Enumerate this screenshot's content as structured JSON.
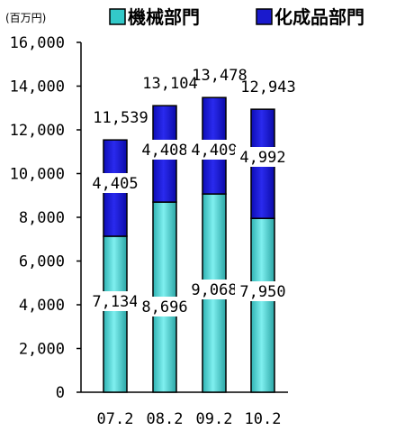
{
  "chart_data": {
    "type": "bar",
    "stacked": true,
    "unit_label": "(百万円)",
    "categories": [
      "07.2",
      "08.2",
      "09.2",
      "10.2"
    ],
    "series": [
      {
        "name": "機械部門",
        "color": "#33c9c9",
        "values": [
          7134,
          8696,
          9068,
          7950
        ],
        "labels": [
          "7,134",
          "8,696",
          "9,068",
          "7,950"
        ]
      },
      {
        "name": "化成品部門",
        "color": "#1a1acd",
        "values": [
          4405,
          4408,
          4409,
          4992
        ],
        "labels": [
          "4,405",
          "4,408",
          "4,409",
          "4,992"
        ]
      }
    ],
    "totals": [
      11539,
      13104,
      13478,
      12943
    ],
    "total_labels": [
      "11,539",
      "13,104",
      "13,478",
      "12,943"
    ],
    "ylim": [
      0,
      16000
    ],
    "yticks": [
      0,
      2000,
      4000,
      6000,
      8000,
      10000,
      12000,
      14000,
      16000
    ],
    "ytick_labels": [
      "0",
      "2,000",
      "4,000",
      "6,000",
      "8,000",
      "10,000",
      "12,000",
      "14,000",
      "16,000"
    ],
    "legend_position": "top",
    "grid": false
  }
}
